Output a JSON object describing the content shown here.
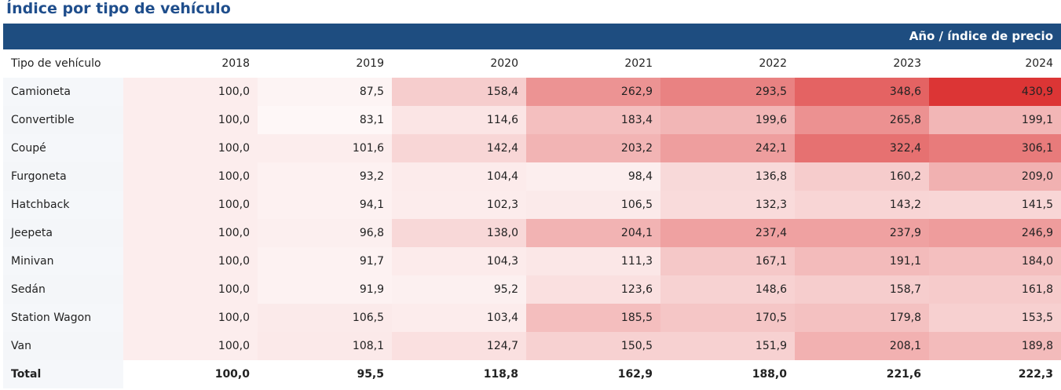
{
  "title": "Índice por tipo de vehículo",
  "banner": "Año / índice de precio",
  "chart_data": {
    "type": "heatmap",
    "title": "Índice por tipo de vehículo",
    "row_header": "Tipo de vehículo",
    "columns": [
      "2018",
      "2019",
      "2020",
      "2021",
      "2022",
      "2023",
      "2024"
    ],
    "rows": [
      {
        "name": "Camioneta",
        "values": [
          "100,0",
          "87,5",
          "158,4",
          "262,9",
          "293,5",
          "348,6",
          "430,9"
        ]
      },
      {
        "name": "Convertible",
        "values": [
          "100,0",
          "83,1",
          "114,6",
          "183,4",
          "199,6",
          "265,8",
          "199,1"
        ]
      },
      {
        "name": "Coupé",
        "values": [
          "100,0",
          "101,6",
          "142,4",
          "203,2",
          "242,1",
          "322,4",
          "306,1"
        ]
      },
      {
        "name": "Furgoneta",
        "values": [
          "100,0",
          "93,2",
          "104,4",
          "98,4",
          "136,8",
          "160,2",
          "209,0"
        ]
      },
      {
        "name": "Hatchback",
        "values": [
          "100,0",
          "94,1",
          "102,3",
          "106,5",
          "132,3",
          "143,2",
          "141,5"
        ]
      },
      {
        "name": "Jeepeta",
        "values": [
          "100,0",
          "96,8",
          "138,0",
          "204,1",
          "237,4",
          "237,9",
          "246,9"
        ]
      },
      {
        "name": "Minivan",
        "values": [
          "100,0",
          "91,7",
          "104,3",
          "111,3",
          "167,1",
          "191,1",
          "184,0"
        ]
      },
      {
        "name": "Sedán",
        "values": [
          "100,0",
          "91,9",
          "95,2",
          "123,6",
          "148,6",
          "158,7",
          "161,8"
        ]
      },
      {
        "name": "Station Wagon",
        "values": [
          "100,0",
          "106,5",
          "103,4",
          "185,5",
          "170,5",
          "179,8",
          "153,5"
        ]
      },
      {
        "name": "Van",
        "values": [
          "100,0",
          "108,1",
          "124,7",
          "150,5",
          "151,9",
          "208,1",
          "189,8"
        ]
      }
    ],
    "total": {
      "name": "Total",
      "values": [
        "100,0",
        "95,5",
        "118,8",
        "162,9",
        "188,0",
        "221,6",
        "222,3"
      ]
    },
    "color_low": "#ffffff",
    "color_high": "#dc3535"
  }
}
